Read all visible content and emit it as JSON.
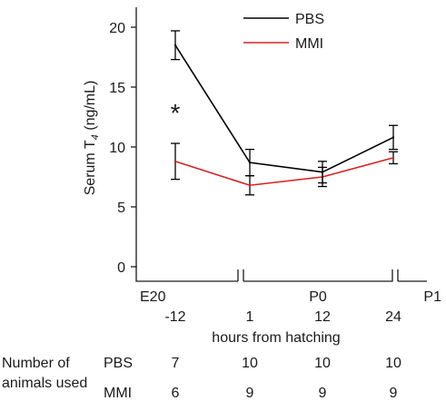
{
  "chart_data": {
    "type": "line",
    "ylabel": "Serum T4 (ng/mL)",
    "ylabel_parts": {
      "pre": "Serum T",
      "sub": "4",
      "post": " (ng/mL)"
    },
    "xlabel": "hours from hatching",
    "x": [
      -12,
      1,
      12,
      24
    ],
    "x_tick_labels": [
      "-12",
      "1",
      "12",
      "24"
    ],
    "ylim": [
      0,
      22
    ],
    "y_ticks": [
      0,
      5,
      10,
      15,
      20
    ],
    "grid": false,
    "legend_position": "top-right",
    "series": [
      {
        "name": "PBS",
        "color": "#000000",
        "values": [
          18.5,
          8.7,
          7.9,
          10.8
        ],
        "err": [
          1.2,
          1.1,
          0.9,
          1.0
        ]
      },
      {
        "name": "MMI",
        "color": "#d62020",
        "values": [
          8.8,
          6.8,
          7.5,
          9.1
        ],
        "err": [
          1.5,
          0.8,
          0.8,
          0.5
        ]
      }
    ],
    "significance": [
      {
        "label": "*",
        "x_index": 0
      }
    ],
    "stage_labels": [
      "E20",
      "P0",
      "P1"
    ],
    "n_table": {
      "row_header": "Number of animals used",
      "row_header_lines": [
        "Number of",
        "animals used"
      ],
      "rows": [
        {
          "name": "PBS",
          "values": [
            "7",
            "10",
            "10",
            "10"
          ]
        },
        {
          "name": "MMI",
          "values": [
            "6",
            "9",
            "9",
            "9"
          ]
        }
      ]
    }
  }
}
